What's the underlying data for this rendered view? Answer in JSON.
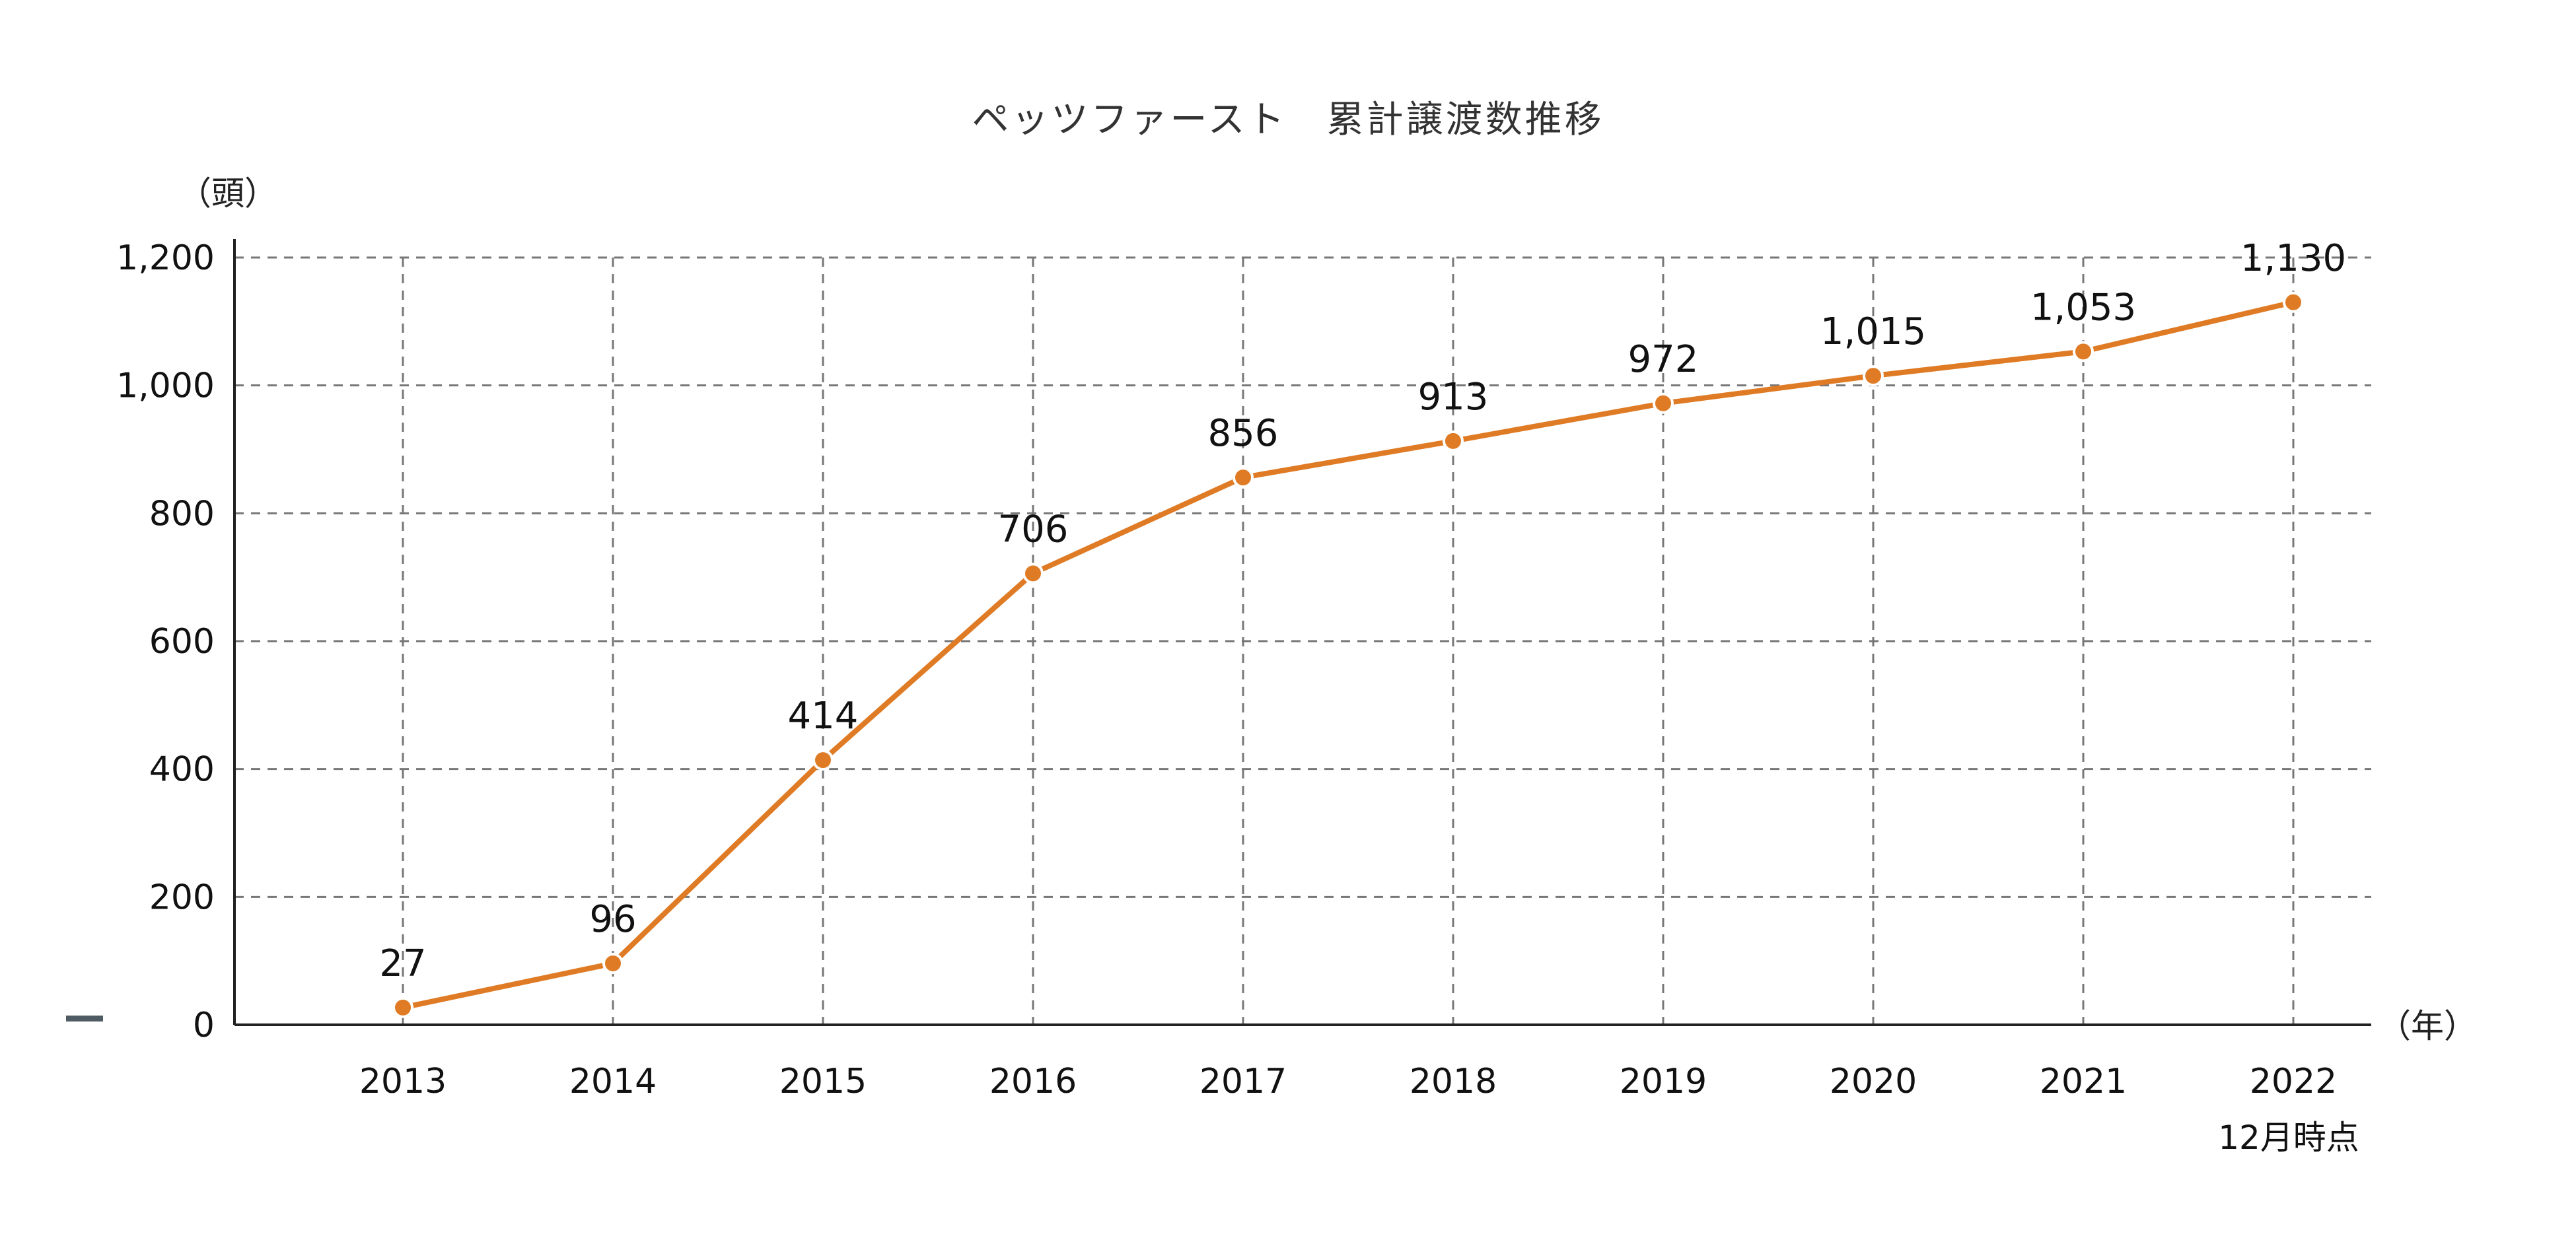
{
  "chart_data": {
    "type": "line",
    "title": "ペッツファースト　累計譲渡数推移",
    "ylabel": "（頭）",
    "xlabel": "（年）",
    "x": [
      "2013",
      "2014",
      "2015",
      "2016",
      "2017",
      "2018",
      "2019",
      "2020",
      "2021",
      "2022"
    ],
    "series": [
      {
        "values": [
          27,
          96,
          414,
          706,
          856,
          913,
          972,
          1015,
          1053,
          1130
        ]
      }
    ],
    "data_labels": [
      "27",
      "96",
      "414",
      "706",
      "856",
      "913",
      "972",
      "1,015",
      "1,053",
      "1,130"
    ],
    "y_ticks": [
      0,
      200,
      400,
      600,
      800,
      1000,
      1200
    ],
    "y_tick_labels": [
      "0",
      "200",
      "400",
      "600",
      "800",
      "1,000",
      "1,200"
    ],
    "ylim": [
      0,
      1200
    ],
    "grid": true,
    "x_note": "12月時点",
    "colors": {
      "line": "#e07b25",
      "grid": "#777777",
      "axis": "#222222",
      "side_mark": "#4f5b62"
    }
  }
}
